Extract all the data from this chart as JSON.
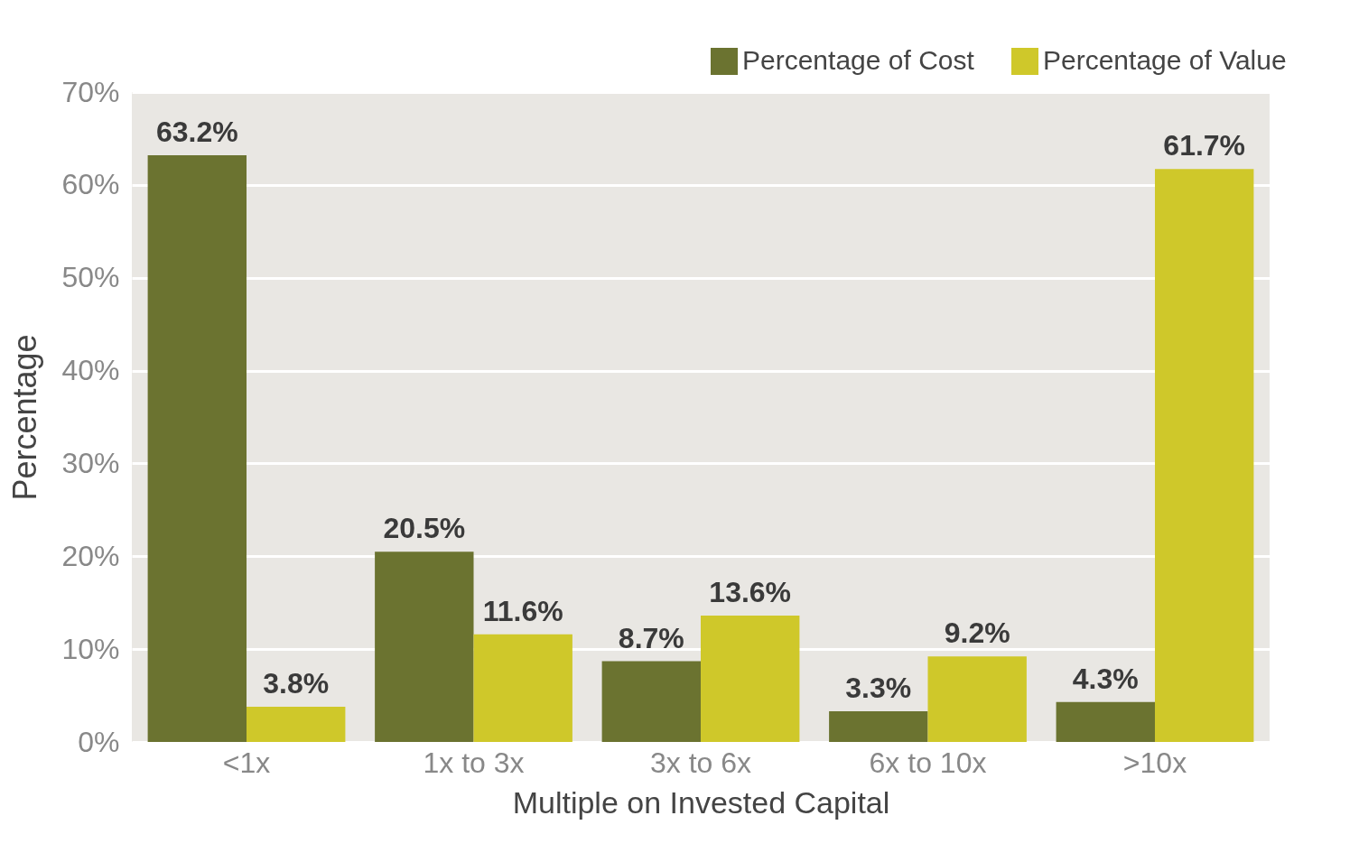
{
  "chart_data": {
    "type": "bar",
    "xlabel": "Multiple on Invested Capital",
    "ylabel": "Percentage",
    "categories": [
      "<1x",
      "1x to 3x",
      "3x to 6x",
      "6x to 10x",
      ">10x"
    ],
    "series": [
      {
        "name": "Percentage of Cost",
        "color": "#6b7330",
        "values": [
          63.2,
          20.5,
          8.7,
          3.3,
          4.3
        ],
        "value_labels": [
          "63.2%",
          "20.5%",
          "8.7%",
          "3.3%",
          "4.3%"
        ]
      },
      {
        "name": "Percentage of Value",
        "color": "#cfc82a",
        "values": [
          3.8,
          11.6,
          13.6,
          9.2,
          61.7
        ],
        "value_labels": [
          "3.8%",
          "11.6%",
          "13.6%",
          "9.2%",
          "61.7%"
        ]
      }
    ],
    "ylim": [
      0,
      70
    ],
    "yticks": [
      {
        "value": 0,
        "label": "0%"
      },
      {
        "value": 10,
        "label": "10%"
      },
      {
        "value": 20,
        "label": "20%"
      },
      {
        "value": 30,
        "label": "30%"
      },
      {
        "value": 40,
        "label": "40%"
      },
      {
        "value": 50,
        "label": "50%"
      },
      {
        "value": 60,
        "label": "60%"
      },
      {
        "value": 70,
        "label": "70%"
      }
    ],
    "grid": "y",
    "legend": "top right"
  }
}
